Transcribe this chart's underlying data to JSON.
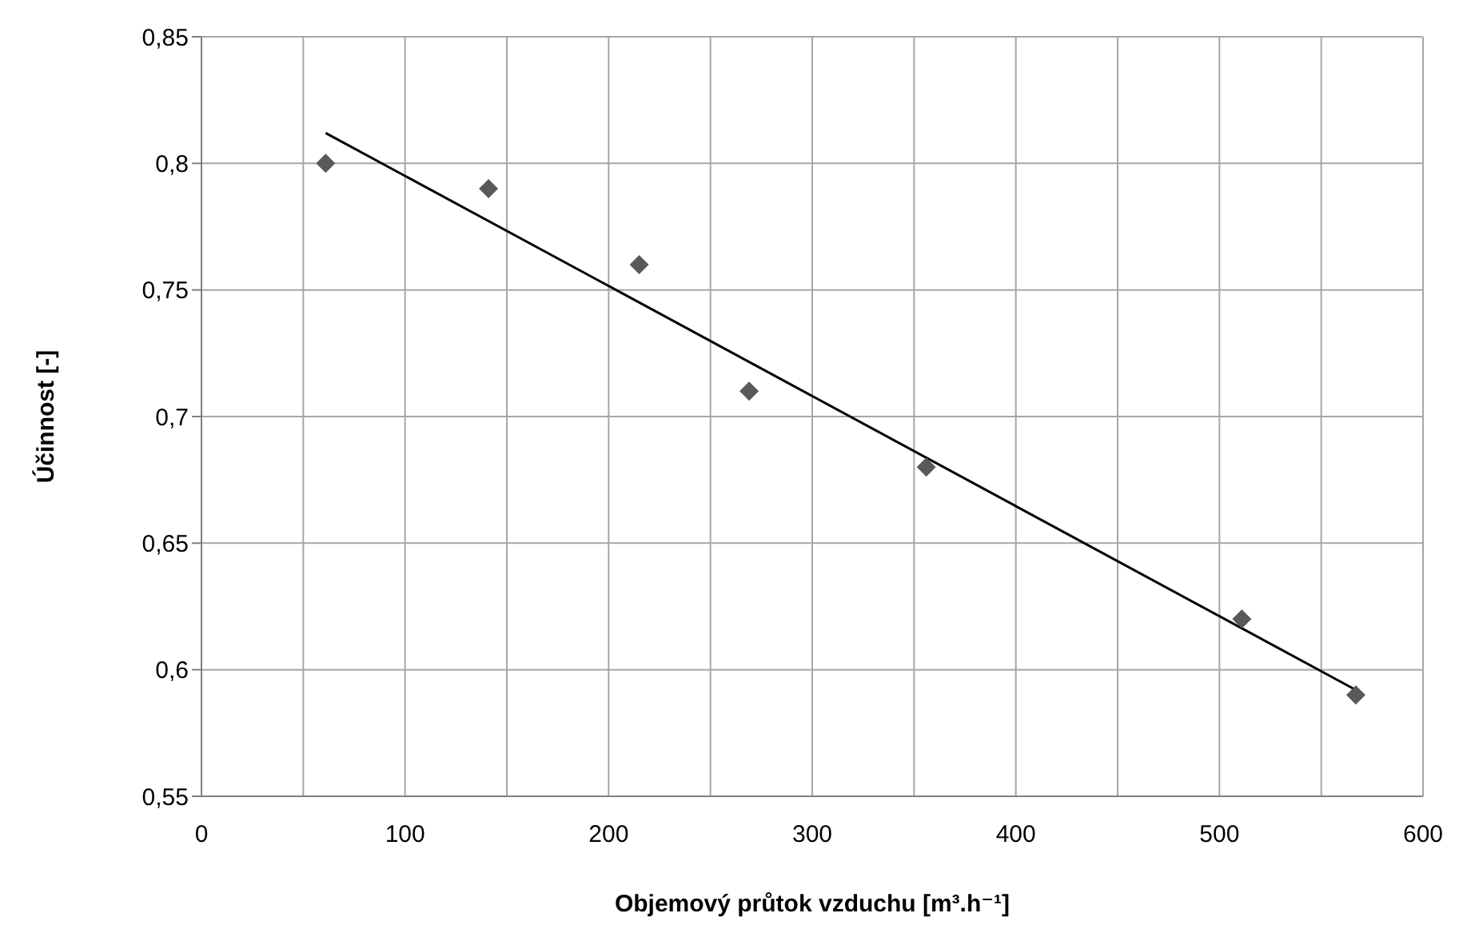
{
  "chart_data": {
    "type": "scatter",
    "xlabel": "Objemový průtok vzduchu [m³.h⁻¹]",
    "ylabel": "Účinnost [-]",
    "xlim": [
      0,
      600
    ],
    "xticks": [
      0,
      {
        "value": 50,
        "label": null
      },
      100,
      {
        "value": 150,
        "label": null
      },
      200,
      {
        "value": 250,
        "label": null
      },
      300,
      {
        "value": 350,
        "label": null
      },
      400,
      {
        "value": 450,
        "label": null
      },
      500,
      {
        "value": 550,
        "label": null
      },
      600
    ],
    "ylim": [
      0.55,
      0.85
    ],
    "yticks": [
      {
        "value": 0.55,
        "label": "0,55"
      },
      {
        "value": 0.6,
        "label": "0,6"
      },
      {
        "value": 0.65,
        "label": "0,65"
      },
      {
        "value": 0.7,
        "label": "0,7"
      },
      {
        "value": 0.75,
        "label": "0,75"
      },
      {
        "value": 0.8,
        "label": "0,8"
      },
      {
        "value": 0.85,
        "label": "0,85"
      }
    ],
    "grid": true,
    "marker": "diamond",
    "x": [
      61,
      141,
      215,
      269,
      356,
      511,
      567
    ],
    "series": [
      {
        "type": "scatter",
        "color": "#595959",
        "values": [
          0.8,
          0.79,
          0.76,
          0.71,
          0.68,
          0.62,
          0.59
        ]
      },
      {
        "type": "line",
        "color": "#000000",
        "x": [
          61,
          567
        ],
        "values": [
          0.812,
          0.592
        ],
        "marker": "none",
        "line_style": "solid"
      }
    ]
  }
}
